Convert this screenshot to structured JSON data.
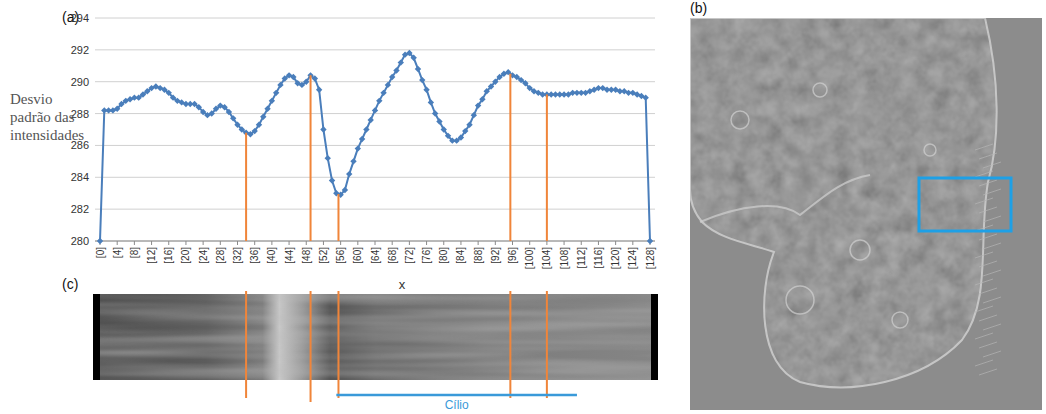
{
  "panel_labels": [
    "(a)",
    "(b)",
    "(c)"
  ],
  "chart_data": {
    "type": "line",
    "y_label": "Desvio padrão das intensidades",
    "x_label": "x",
    "x": [
      0,
      1,
      2,
      3,
      4,
      5,
      6,
      7,
      8,
      9,
      10,
      11,
      12,
      13,
      14,
      15,
      16,
      17,
      18,
      19,
      20,
      21,
      22,
      23,
      24,
      25,
      26,
      27,
      28,
      29,
      30,
      31,
      32,
      33,
      34,
      35,
      36,
      37,
      38,
      39,
      40,
      41,
      42,
      43,
      44,
      45,
      46,
      47,
      48,
      49,
      50,
      51,
      52,
      53,
      54,
      55,
      56,
      57,
      58,
      59,
      60,
      61,
      62,
      63,
      64,
      65,
      66,
      67,
      68,
      69,
      70,
      71,
      72,
      73,
      74,
      75,
      76,
      77,
      78,
      79,
      80,
      81,
      82,
      83,
      84,
      85,
      86,
      87,
      88,
      89,
      90,
      91,
      92,
      93,
      94,
      95,
      96,
      97,
      98,
      99,
      100,
      101,
      102,
      103,
      104,
      105,
      106,
      107,
      108,
      109,
      110,
      111,
      112,
      113,
      114,
      115,
      116,
      117,
      118,
      119,
      120,
      121,
      122,
      123,
      124,
      125,
      126,
      127,
      128
    ],
    "series": [
      {
        "color": "#4a7ebb",
        "marker": "diamond",
        "line_style": "solid",
        "values": [
          280,
          288.2,
          288.2,
          288.2,
          288.3,
          288.6,
          288.8,
          288.9,
          289.0,
          289.0,
          289.2,
          289.4,
          289.6,
          289.7,
          289.6,
          289.5,
          289.3,
          289.0,
          288.8,
          288.7,
          288.6,
          288.6,
          288.6,
          288.4,
          288.1,
          287.9,
          288.0,
          288.3,
          288.5,
          288.4,
          288.1,
          287.7,
          287.3,
          287.0,
          286.8,
          286.7,
          286.9,
          287.3,
          287.8,
          288.3,
          288.8,
          289.3,
          289.8,
          290.2,
          290.4,
          290.3,
          289.9,
          289.8,
          290.0,
          290.4,
          290.2,
          289.5,
          287.0,
          285.2,
          283.8,
          283.0,
          282.9,
          283.2,
          284.2,
          285.0,
          285.8,
          286.4,
          287.0,
          287.6,
          288.2,
          288.8,
          289.3,
          289.8,
          290.3,
          290.7,
          291.2,
          291.7,
          291.8,
          291.5,
          290.8,
          290.1,
          289.5,
          288.7,
          288.0,
          287.5,
          287.0,
          286.6,
          286.3,
          286.3,
          286.5,
          286.9,
          287.3,
          287.9,
          288.5,
          288.9,
          289.4,
          289.7,
          290.0,
          290.3,
          290.5,
          290.6,
          290.4,
          290.3,
          290.1,
          289.9,
          289.6,
          289.4,
          289.3,
          289.2,
          289.2,
          289.2,
          289.2,
          289.2,
          289.2,
          289.2,
          289.3,
          289.3,
          289.3,
          289.3,
          289.4,
          289.5,
          289.6,
          289.6,
          289.5,
          289.5,
          289.5,
          289.4,
          289.4,
          289.3,
          289.3,
          289.2,
          289.1,
          289.0,
          280
        ]
      }
    ],
    "xlim": [
      0,
      128
    ],
    "xticks": [
      {
        "value": 0,
        "label": "[0]"
      },
      {
        "value": 4,
        "label": "[4]"
      },
      {
        "value": 8,
        "label": "[8]"
      },
      {
        "value": 12,
        "label": "[12]"
      },
      {
        "value": 16,
        "label": "[16]"
      },
      {
        "value": 20,
        "label": "[20]"
      },
      {
        "value": 24,
        "label": "[24]"
      },
      {
        "value": 28,
        "label": "[28]"
      },
      {
        "value": 32,
        "label": "[32]"
      },
      {
        "value": 36,
        "label": "[36]"
      },
      {
        "value": 40,
        "label": "[40]"
      },
      {
        "value": 44,
        "label": "[44]"
      },
      {
        "value": 48,
        "label": "[48]"
      },
      {
        "value": 52,
        "label": "[52]"
      },
      {
        "value": 56,
        "label": "[56]"
      },
      {
        "value": 60,
        "label": "[60]"
      },
      {
        "value": 64,
        "label": "[64]"
      },
      {
        "value": 68,
        "label": "[68]"
      },
      {
        "value": 72,
        "label": "[72]"
      },
      {
        "value": 76,
        "label": "[76]"
      },
      {
        "value": 80,
        "label": "[80]"
      },
      {
        "value": 84,
        "label": "[84]"
      },
      {
        "value": 88,
        "label": "[88]"
      },
      {
        "value": 92,
        "label": "[92]"
      },
      {
        "value": 96,
        "label": "[96]"
      },
      {
        "value": 100,
        "label": "[100]"
      },
      {
        "value": 104,
        "label": "[104]"
      },
      {
        "value": 108,
        "label": "[108]"
      },
      {
        "value": 112,
        "label": "[112]"
      },
      {
        "value": 116,
        "label": "[116]"
      },
      {
        "value": 120,
        "label": "[120]"
      },
      {
        "value": 124,
        "label": "[124]"
      },
      {
        "value": 128,
        "label": "[128]"
      }
    ],
    "ylim": [
      280,
      294
    ],
    "yticks": [
      280,
      282,
      284,
      286,
      288,
      290,
      292,
      294
    ],
    "grid": true,
    "vlines": [
      34,
      49,
      55.5,
      95.5,
      104
    ],
    "annotations": [
      {
        "text": "Cílio",
        "from": 55,
        "to": 111
      }
    ]
  }
}
